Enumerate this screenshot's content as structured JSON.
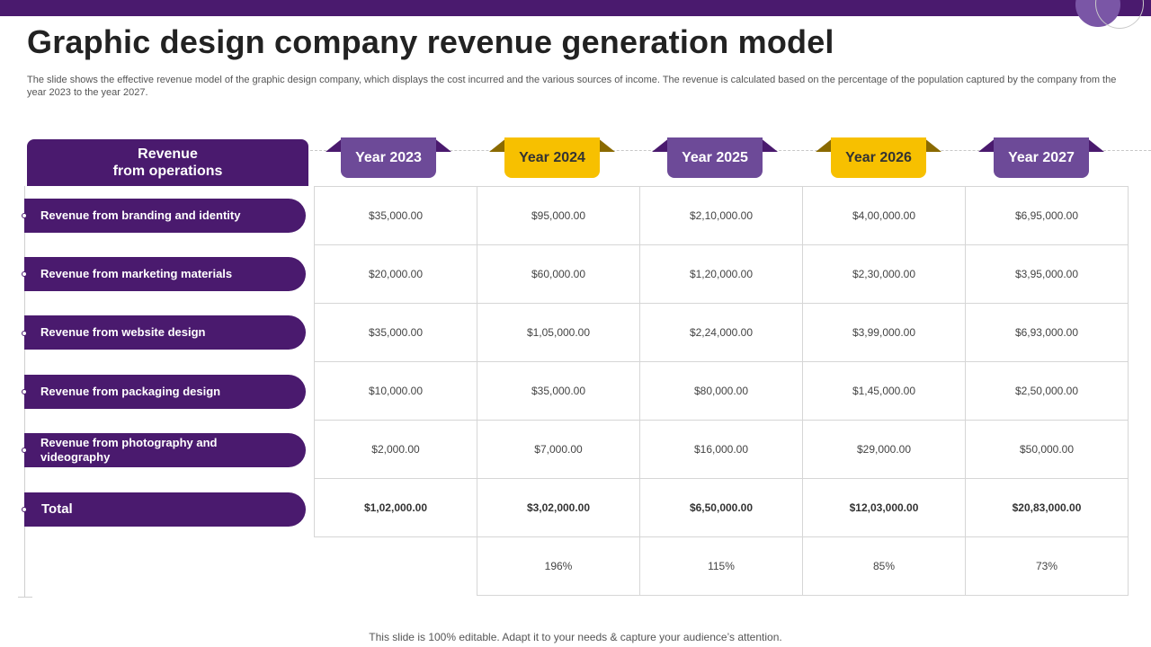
{
  "title": "Graphic design company revenue generation model",
  "subtitle": "The slide shows the effective revenue model of the graphic design company, which displays the cost incurred and the various sources of income. The revenue is calculated based on the percentage of the population captured by the company from the year 2023 to the year 2027.",
  "table_header": {
    "line1": "Revenue",
    "line2": "from operations"
  },
  "years": [
    "Year 2023",
    "Year 2024",
    "Year 2025",
    "Year 2026",
    "Year 2027"
  ],
  "rows": [
    {
      "label": "Revenue from branding and identity",
      "values": [
        "$35,000.00",
        "$95,000.00",
        "$2,10,000.00",
        "$4,00,000.00",
        "$6,95,000.00"
      ]
    },
    {
      "label": "Revenue from marketing materials",
      "values": [
        "$20,000.00",
        "$60,000.00",
        "$1,20,000.00",
        "$2,30,000.00",
        "$3,95,000.00"
      ]
    },
    {
      "label": "Revenue from website design",
      "values": [
        "$35,000.00",
        "$1,05,000.00",
        "$2,24,000.00",
        "$3,99,000.00",
        "$6,93,000.00"
      ]
    },
    {
      "label": "Revenue from packaging design",
      "values": [
        "$10,000.00",
        "$35,000.00",
        "$80,000.00",
        "$1,45,000.00",
        "$2,50,000.00"
      ]
    },
    {
      "label": "Revenue from photography and videography",
      "values": [
        "$2,000.00",
        "$7,000.00",
        "$16,000.00",
        "$29,000.00",
        "$50,000.00"
      ]
    }
  ],
  "total": {
    "label": "Total",
    "values": [
      "$1,02,000.00",
      "$3,02,000.00",
      "$6,50,000.00",
      "$12,03,000.00",
      "$20,83,000.00"
    ]
  },
  "growth": [
    "196%",
    "115%",
    "85%",
    "73%"
  ],
  "footer": "This slide is 100% editable. Adapt it to your needs & capture your audience’s attention.",
  "colors": {
    "primary": "#4a1a6e",
    "secondary": "#6d4a98",
    "accent": "#f7c000"
  }
}
